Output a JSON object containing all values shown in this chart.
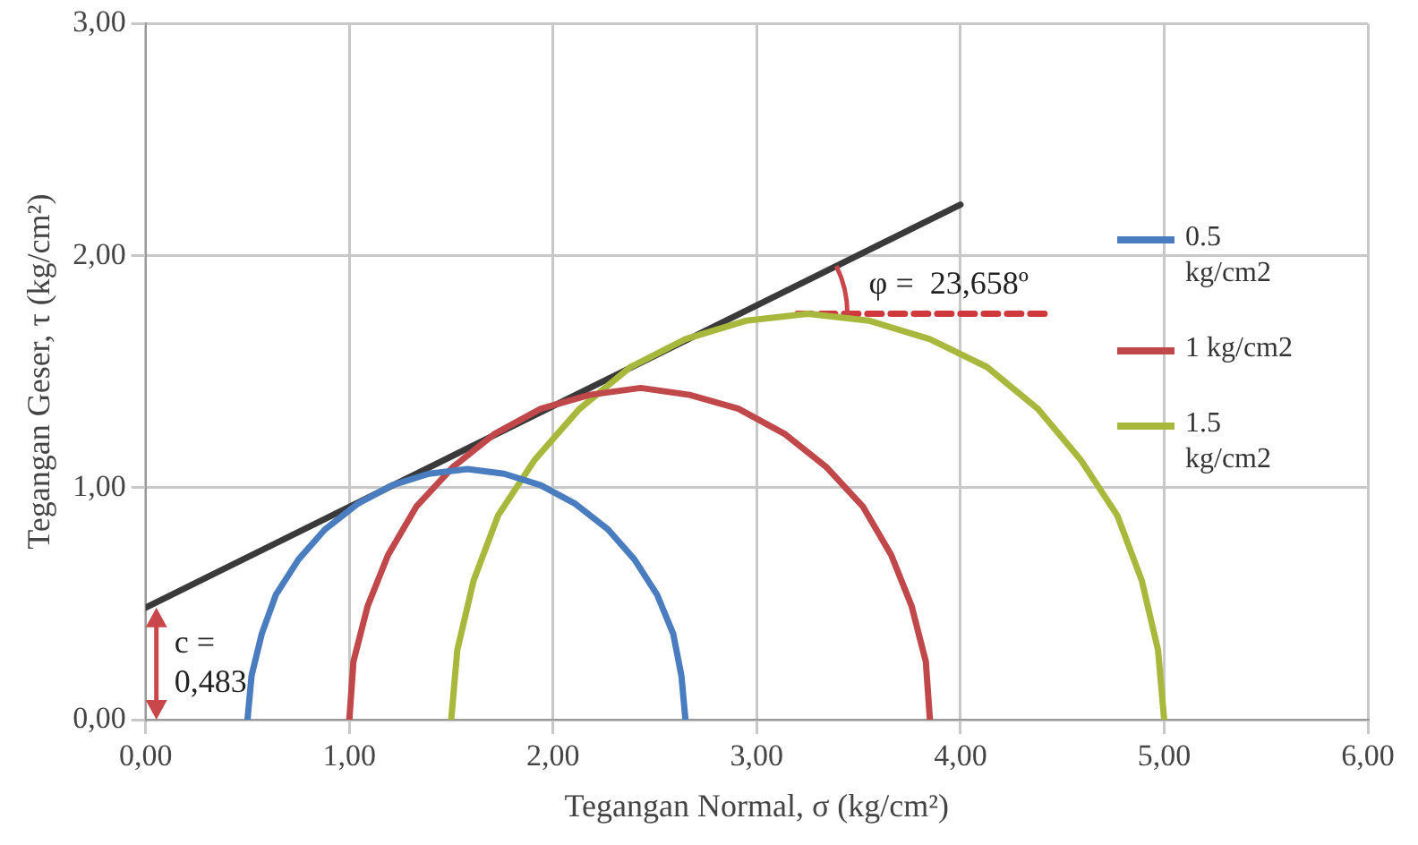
{
  "chart_data": {
    "type": "line",
    "xlabel": "Tegangan Normal, σ (kg/cm²)",
    "ylabel": "Tegangan Geser, τ (kg/cm²)",
    "xlim": [
      0,
      6
    ],
    "xticks": [
      {
        "value": 0,
        "label": "0,00"
      },
      {
        "value": 1,
        "label": "1,00"
      },
      {
        "value": 2,
        "label": "2,00"
      },
      {
        "value": 3,
        "label": "3,00"
      },
      {
        "value": 4,
        "label": "4,00"
      },
      {
        "value": 5,
        "label": "5,00"
      },
      {
        "value": 6,
        "label": "6,00"
      }
    ],
    "ylim": [
      0,
      3
    ],
    "yticks": [
      {
        "value": 0,
        "label": "0,00"
      },
      {
        "value": 1,
        "label": "1,00"
      },
      {
        "value": 2,
        "label": "2,00"
      },
      {
        "value": 3,
        "label": "3,00"
      }
    ],
    "grid": true,
    "legend": "right",
    "marker": "none",
    "series": [
      {
        "name": "0.5 kg/cm2",
        "color": "#4a7cc0",
        "x": [
          0.5,
          0.52,
          0.57,
          0.64,
          0.75,
          0.88,
          1.04,
          1.21,
          1.39,
          1.58,
          1.76,
          1.94,
          2.11,
          2.27,
          2.4,
          2.51,
          2.59,
          2.63,
          2.65
        ],
        "values": [
          0,
          0.19,
          0.37,
          0.54,
          0.69,
          0.82,
          0.93,
          1.01,
          1.06,
          1.08,
          1.06,
          1.01,
          0.93,
          0.82,
          0.69,
          0.54,
          0.37,
          0.19,
          0
        ]
      },
      {
        "name": "1 kg/cm2",
        "color": "#c0474a",
        "x": [
          1.0,
          1.02,
          1.09,
          1.19,
          1.33,
          1.51,
          1.71,
          1.94,
          2.18,
          2.43,
          2.67,
          2.91,
          3.14,
          3.34,
          3.52,
          3.66,
          3.76,
          3.83,
          3.85
        ],
        "values": [
          0,
          0.25,
          0.49,
          0.71,
          0.92,
          1.09,
          1.23,
          1.34,
          1.4,
          1.43,
          1.4,
          1.34,
          1.23,
          1.09,
          0.92,
          0.71,
          0.49,
          0.25,
          0
        ]
      },
      {
        "name": "1.5 kg/cm2",
        "color": "#a8b83c",
        "x": [
          1.5,
          1.53,
          1.61,
          1.73,
          1.91,
          2.13,
          2.38,
          2.65,
          2.95,
          3.25,
          3.55,
          3.85,
          4.13,
          4.38,
          4.59,
          4.77,
          4.89,
          4.97,
          5.0
        ],
        "values": [
          0,
          0.3,
          0.6,
          0.88,
          1.12,
          1.34,
          1.52,
          1.64,
          1.72,
          1.75,
          1.72,
          1.64,
          1.52,
          1.34,
          1.12,
          0.88,
          0.6,
          0.3,
          0
        ]
      },
      {
        "type": "line",
        "color": "#3a3a3a",
        "x": [
          0,
          4
        ],
        "values": [
          0.483,
          2.22
        ]
      },
      {
        "type": "line",
        "color": "#d0393c",
        "line_style": "dashed",
        "x": [
          3.2,
          4.45
        ],
        "values": [
          1.75,
          1.75
        ]
      }
    ],
    "annotations": [
      "φ =  23,658º",
      "c = 0,483"
    ]
  }
}
